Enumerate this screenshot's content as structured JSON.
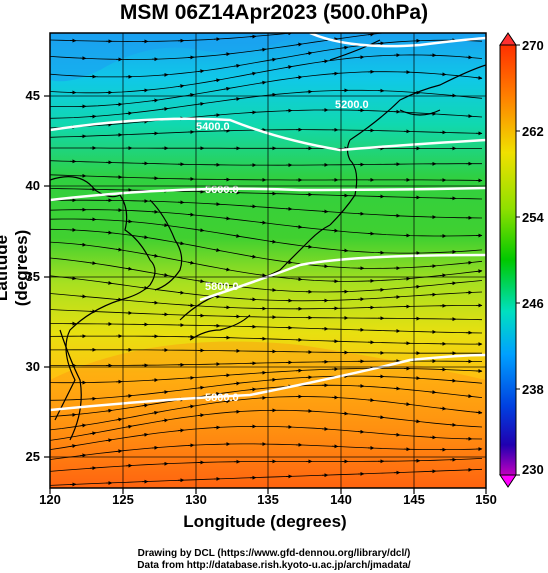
{
  "title": "MSM 06Z14Apr2023 (500.0hPa)",
  "axes": {
    "xlabel": "Longitude (degrees)",
    "ylabel": "Latitude  (degrees)",
    "xticks": [
      "120",
      "125",
      "130",
      "135",
      "140",
      "145",
      "150"
    ],
    "yticks": [
      "45",
      "40",
      "35",
      "30",
      "25"
    ],
    "xlim": [
      120,
      150
    ],
    "ylim": [
      22.4,
      47.6
    ]
  },
  "colorbar": {
    "ticks": [
      "270",
      "262",
      "254",
      "246",
      "238",
      "230"
    ],
    "range": [
      230,
      270
    ],
    "colors": [
      "#cc00cc",
      "#0000cc",
      "#0088ff",
      "#00e0e0",
      "#00c800",
      "#c8e600",
      "#ffc800",
      "#ff6400",
      "#e00000"
    ]
  },
  "contours": [
    {
      "label": "5200.0",
      "lat": 46.3
    },
    {
      "label": "5400.0",
      "lat": 43.0
    },
    {
      "label": "5600.0",
      "lat": 40.1
    },
    {
      "label": "5800.0",
      "lat": 35.6
    },
    {
      "label": "5800.0",
      "lat": 27.8
    }
  ],
  "credits": {
    "line1": "Drawing by DCL (https://www.gfd-dennou.org/library/dcl/)",
    "line2": "Data from http://database.rish.kyoto-u.ac.jp/arch/jmadata/"
  }
}
